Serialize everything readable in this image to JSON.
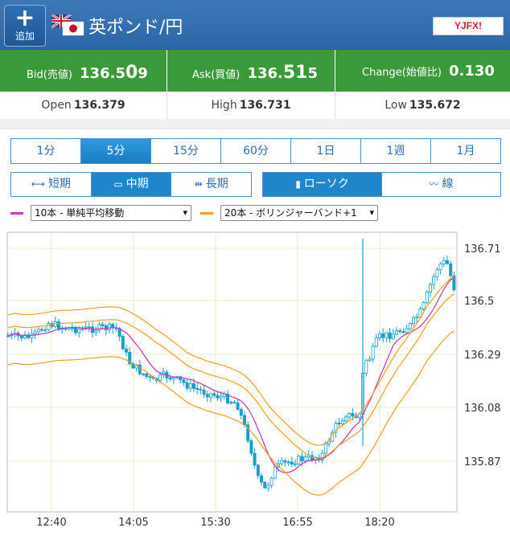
{
  "header": {
    "add_label": "追加",
    "pair": "英ポンド/円",
    "logo": "YJFX!"
  },
  "quotes": {
    "bid_label": "Bid(売値)",
    "bid_main": "136.5",
    "bid_big": "0",
    "bid_small": "9",
    "ask_label": "Ask(買値)",
    "ask_main": "136.",
    "ask_big": "51",
    "ask_small": "5",
    "change_label": "Change(始値比)",
    "change_value": "0.130"
  },
  "stats": {
    "open_label": "Open",
    "open_value": "136.379",
    "high_label": "High",
    "high_value": "136.731",
    "low_label": "Low",
    "low_value": "135.672"
  },
  "timeframes": [
    "1分",
    "5分",
    "15分",
    "60分",
    "1日",
    "1週",
    "1月"
  ],
  "active_timeframe": "5分",
  "periods": [
    "短期",
    "中期",
    "長期"
  ],
  "active_period": "中期",
  "chart_types": [
    "ローソク",
    "線"
  ],
  "active_chart_type": "ローソク",
  "indicators": [
    {
      "label": "10本 - 単純平均移動",
      "color": "#c83fb2"
    },
    {
      "label": "20本 - ボリンジャーバンド+1",
      "color": "#f0a020"
    }
  ],
  "colors": {
    "candle": "#1aa0c8",
    "ma": "#c83fb2",
    "bollinger": "#f0a020",
    "quote_bar": "#3a9a3a",
    "header": "#3170b0"
  },
  "chart_data": {
    "type": "candlestick",
    "y_ticks": [
      "136.71",
      "136.5",
      "136.29",
      "136.08",
      "135.87"
    ],
    "x_ticks": [
      "12:40",
      "14:05",
      "15:30",
      "16:55",
      "18:20"
    ],
    "series": [
      {
        "name": "10本 - 単純平均移動",
        "kind": "ma"
      },
      {
        "name": "20本 - ボリンジャーバンド+1",
        "kind": "bollinger"
      }
    ]
  }
}
